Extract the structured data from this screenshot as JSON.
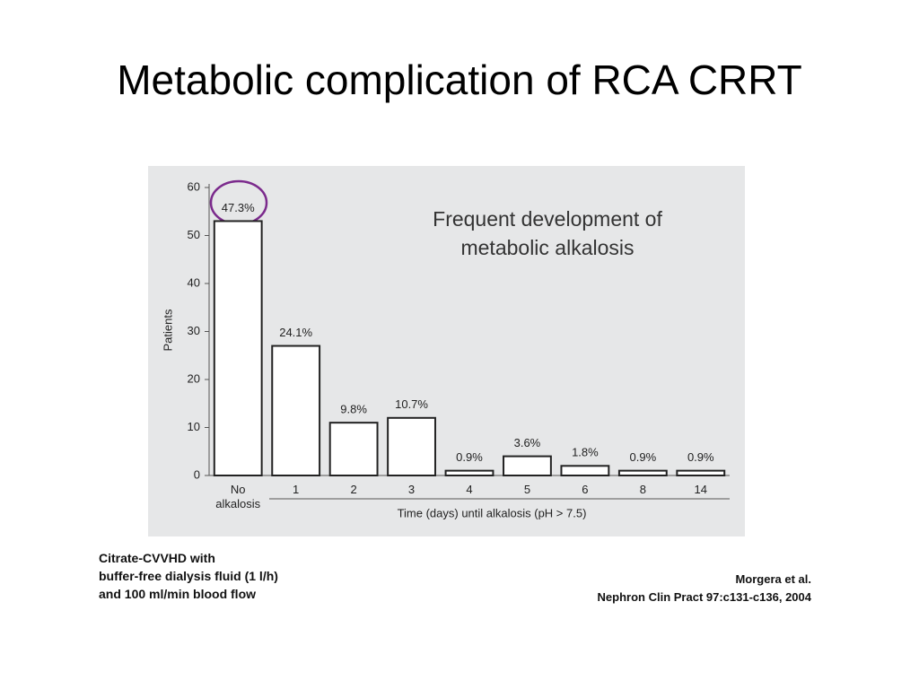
{
  "title": "Metabolic complication of RCA CRRT",
  "note_lines": [
    "Citrate-CVVHD with",
    "buffer-free dialysis fluid (1 l/h)",
    "and 100 ml/min blood flow"
  ],
  "citation_lines": [
    "Morgera et al.",
    "Nephron Clin Pract 97:c131-c136, 2004"
  ],
  "chart_data": {
    "type": "bar",
    "title": "Frequent development of metabolic alkalosis",
    "x_label": "Time (days) until alkalosis (pH > 7.5)",
    "y_label": "Patients",
    "categories": [
      "No alkalosis",
      "1",
      "2",
      "3",
      "4",
      "5",
      "6",
      "8",
      "14"
    ],
    "values": [
      53,
      27,
      11,
      12,
      1,
      4,
      2,
      1,
      1
    ],
    "value_labels": [
      "47.3%",
      "24.1%",
      "9.8%",
      "10.7%",
      "0.9%",
      "3.6%",
      "1.8%",
      "0.9%",
      "0.9%"
    ],
    "color": "#ffffff",
    "ylim": [
      0,
      60
    ],
    "yticks": [
      0,
      10,
      20,
      30,
      40,
      50,
      60
    ],
    "grid": false
  }
}
